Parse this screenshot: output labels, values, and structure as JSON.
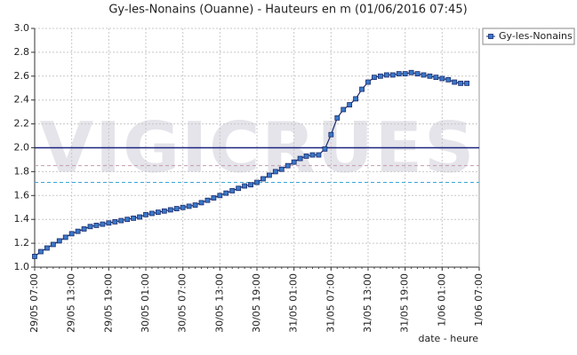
{
  "chart_data": {
    "type": "line",
    "title": "Gy-les-Nonains (Ouanne) - Hauteurs en m (01/06/2016 07:45)",
    "watermark": "VIGICRUES",
    "xlabel": "date - heure",
    "x": [
      "29/05 07:00",
      "29/05 08:00",
      "29/05 09:00",
      "29/05 10:00",
      "29/05 11:00",
      "29/05 12:00",
      "29/05 13:00",
      "29/05 14:00",
      "29/05 15:00",
      "29/05 16:00",
      "29/05 17:00",
      "29/05 18:00",
      "29/05 19:00",
      "29/05 20:00",
      "29/05 21:00",
      "29/05 22:00",
      "29/05 23:00",
      "30/05 00:00",
      "30/05 01:00",
      "30/05 02:00",
      "30/05 03:00",
      "30/05 04:00",
      "30/05 05:00",
      "30/05 06:00",
      "30/05 07:00",
      "30/05 08:00",
      "30/05 09:00",
      "30/05 10:00",
      "30/05 11:00",
      "30/05 12:00",
      "30/05 13:00",
      "30/05 14:00",
      "30/05 15:00",
      "30/05 16:00",
      "30/05 17:00",
      "30/05 18:00",
      "30/05 19:00",
      "30/05 20:00",
      "30/05 21:00",
      "30/05 22:00",
      "30/05 23:00",
      "31/05 00:00",
      "31/05 01:00",
      "31/05 02:00",
      "31/05 03:00",
      "31/05 04:00",
      "31/05 05:00",
      "31/05 06:00",
      "31/05 07:00",
      "31/05 08:00",
      "31/05 09:00",
      "31/05 10:00",
      "31/05 11:00",
      "31/05 12:00",
      "31/05 13:00",
      "31/05 14:00",
      "31/05 15:00",
      "31/05 16:00",
      "31/05 17:00",
      "31/05 18:00",
      "31/05 19:00",
      "31/05 20:00",
      "31/05 21:00",
      "31/05 22:00",
      "31/05 23:00",
      "1/06 00:00",
      "1/06 01:00",
      "1/06 02:00",
      "1/06 03:00",
      "1/06 04:00",
      "1/06 05:00"
    ],
    "series": [
      {
        "name": "Gy-les-Nonains",
        "color": "#1a2a6c",
        "marker_color": "#3a78c8",
        "values": [
          1.09,
          1.13,
          1.16,
          1.19,
          1.22,
          1.25,
          1.28,
          1.3,
          1.32,
          1.34,
          1.35,
          1.36,
          1.37,
          1.38,
          1.39,
          1.4,
          1.41,
          1.42,
          1.44,
          1.45,
          1.46,
          1.47,
          1.48,
          1.49,
          1.5,
          1.51,
          1.52,
          1.54,
          1.56,
          1.58,
          1.6,
          1.62,
          1.64,
          1.66,
          1.68,
          1.69,
          1.71,
          1.74,
          1.77,
          1.8,
          1.82,
          1.85,
          1.88,
          1.91,
          1.93,
          1.94,
          1.94,
          1.99,
          2.11,
          2.25,
          2.32,
          2.36,
          2.41,
          2.49,
          2.55,
          2.59,
          2.6,
          2.61,
          2.61,
          2.62,
          2.62,
          2.63,
          2.62,
          2.61,
          2.6,
          2.59,
          2.58,
          2.57,
          2.55,
          2.54,
          2.54
        ]
      }
    ],
    "thresholds": [
      {
        "value": 2.0,
        "color": "#1a237e",
        "dashed": false
      },
      {
        "value": 1.85,
        "color": "#c49ab0",
        "dashed": true
      },
      {
        "value": 1.71,
        "color": "#3aa7d6",
        "dashed": true
      }
    ],
    "xlim": [
      "29/05 07:00",
      "1/06 07:00"
    ],
    "xticks": [
      "29/05 07:00",
      "29/05 13:00",
      "29/05 19:00",
      "30/05 01:00",
      "30/05 07:00",
      "30/05 13:00",
      "30/05 19:00",
      "31/05 01:00",
      "31/05 07:00",
      "31/05 13:00",
      "31/05 19:00",
      "1/06 01:00",
      "1/06 07:00"
    ],
    "ylim": [
      1.0,
      3.0
    ],
    "yticks": [
      {
        "value": 1.0,
        "label": "1.0"
      },
      1.2,
      1.4,
      1.6,
      1.8,
      {
        "value": 2.0,
        "label": "2.0"
      },
      2.2,
      2.4,
      2.6,
      2.8,
      {
        "value": 3.0,
        "label": "3.0"
      }
    ],
    "grid": true,
    "legend": "top-right"
  }
}
